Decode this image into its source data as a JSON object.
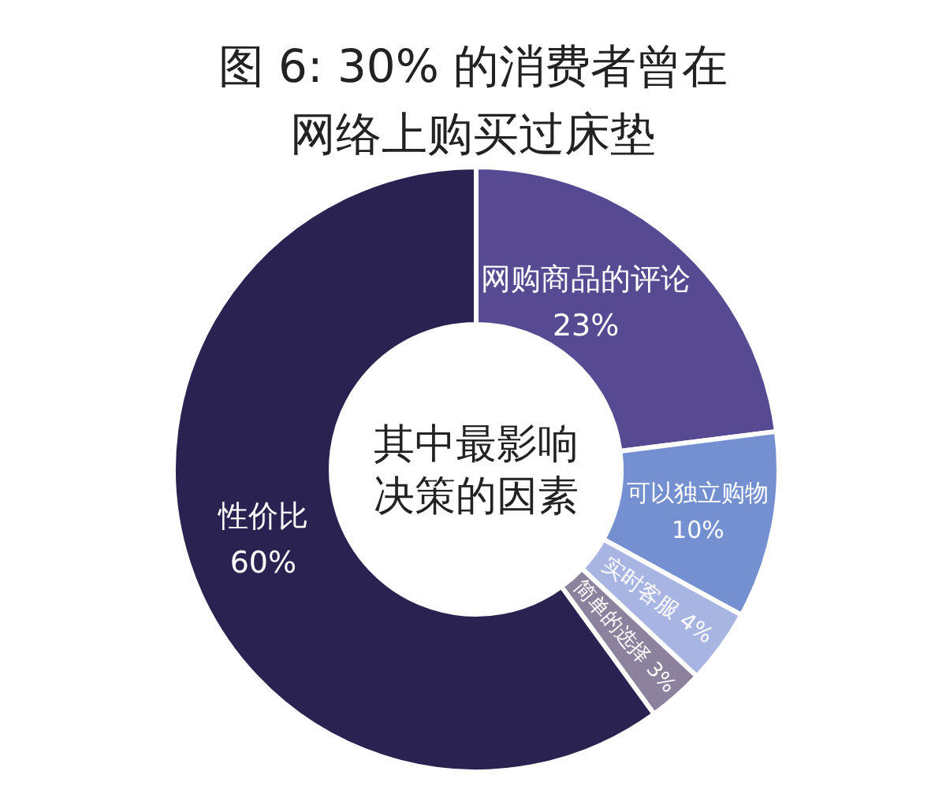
{
  "chart_data": {
    "type": "donut",
    "title": "图 6: 30% 的消费者曾在网络上购买过床垫",
    "categories": [
      "网购商品的评论",
      "可以独立购物",
      "实时客服",
      "简单的选择",
      "性价比"
    ],
    "values": [
      23,
      10,
      4,
      3,
      60
    ],
    "colors": [
      "#574a93",
      "#7490d0",
      "#a8b5e3",
      "#8c829e",
      "#2a2352"
    ],
    "value_labels": [
      "23%",
      "10%",
      "4%",
      "3%",
      "60%"
    ],
    "annotations": [
      "其中最影响决策的因素"
    ]
  }
}
